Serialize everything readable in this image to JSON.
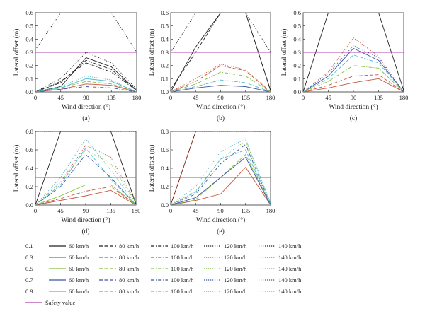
{
  "colors": {
    "0.1": "#222222",
    "0.3": "#c8553d",
    "0.5": "#7fbf3f",
    "0.7": "#3c55a5",
    "0.9": "#4fb8c8",
    "safety": "#b040b0"
  },
  "chart_data": [
    {
      "type": "line",
      "panel": "(a)",
      "xlabel": "Wind direction (°)",
      "ylabel": "Lateral offset (m)",
      "x": [
        0,
        45,
        90,
        135,
        180
      ],
      "xticks": [
        "0",
        "45",
        "90",
        "135",
        "180"
      ],
      "ylim": [
        0,
        0.6
      ],
      "yticks": [
        "0.0",
        "0.1",
        "0.2",
        "0.3",
        "0.4",
        "0.5",
        "0.6"
      ],
      "safety_value": 0.3,
      "series": [
        {
          "group": "0.1",
          "speed": "60 km/h",
          "dash": "solid",
          "values": [
            0,
            0.04,
            0.26,
            0.19,
            0.01
          ]
        },
        {
          "group": "0.1",
          "speed": "80 km/h",
          "dash": "dash",
          "values": [
            0,
            0.07,
            0.24,
            0.17,
            0.01
          ]
        },
        {
          "group": "0.1",
          "speed": "100 km/h",
          "dash": "dashdot",
          "values": [
            0,
            0.08,
            0.22,
            0.15,
            0.01
          ]
        },
        {
          "group": "0.1",
          "speed": "120 km/h",
          "dash": "dotted",
          "values": [
            0,
            0.1,
            0.3,
            0.22,
            0.02
          ]
        },
        {
          "group": "0.1",
          "speed": "140 km/h",
          "dash": "dotted",
          "values": [
            0.32,
            0.6,
            0.6,
            0.6,
            0.3
          ]
        },
        {
          "group": "0.3",
          "speed": "60 km/h",
          "dash": "solid",
          "values": [
            0,
            0.02,
            0.06,
            0.05,
            0
          ]
        },
        {
          "group": "0.5",
          "speed": "80 km/h",
          "dash": "dash",
          "values": [
            0,
            0.03,
            0.08,
            0.06,
            0
          ]
        },
        {
          "group": "0.7",
          "speed": "100 km/h",
          "dash": "dashdot",
          "values": [
            0,
            0.02,
            0.04,
            0.03,
            0
          ]
        },
        {
          "group": "0.9",
          "speed": "60 km/h",
          "dash": "solid",
          "values": [
            0,
            0.03,
            0.1,
            0.08,
            0
          ]
        },
        {
          "group": "0.9",
          "speed": "120 km/h",
          "dash": "dotted",
          "values": [
            0,
            0.04,
            0.12,
            0.09,
            0
          ]
        }
      ]
    },
    {
      "type": "line",
      "panel": "(b)",
      "xlabel": "Wind direction (°)",
      "ylabel": "Lateral offset (m)",
      "x": [
        0,
        45,
        90,
        135,
        180
      ],
      "xticks": [
        "0",
        "45",
        "90",
        "135",
        "180"
      ],
      "ylim": [
        0,
        0.6
      ],
      "yticks": [
        "0.0",
        "0.1",
        "0.2",
        "0.3",
        "0.4",
        "0.5",
        "0.6"
      ],
      "safety_value": 0.3,
      "series": [
        {
          "group": "0.1",
          "speed": "60 km/h",
          "dash": "solid",
          "values": [
            0,
            0.34,
            0.6,
            0.6,
            0.01
          ]
        },
        {
          "group": "0.1",
          "speed": "80 km/h",
          "dash": "dash",
          "values": [
            0.02,
            0.3,
            0.6,
            0.6,
            0.01
          ]
        },
        {
          "group": "0.1",
          "speed": "140 km/h",
          "dash": "dotted",
          "values": [
            0.3,
            0.6,
            0.6,
            0.6,
            0.3
          ]
        },
        {
          "group": "0.3",
          "speed": "80 km/h",
          "dash": "dash",
          "values": [
            0,
            0.08,
            0.2,
            0.16,
            0
          ]
        },
        {
          "group": "0.3",
          "speed": "120 km/h",
          "dash": "dotted",
          "values": [
            0,
            0.1,
            0.21,
            0.17,
            0
          ]
        },
        {
          "group": "0.5",
          "speed": "100 km/h",
          "dash": "dashdot",
          "values": [
            0,
            0.06,
            0.15,
            0.12,
            0
          ]
        },
        {
          "group": "0.7",
          "speed": "60 km/h",
          "dash": "solid",
          "values": [
            0,
            0.03,
            0.05,
            0.04,
            0
          ]
        },
        {
          "group": "0.9",
          "speed": "100 km/h",
          "dash": "dashdot",
          "values": [
            0,
            0.04,
            0.09,
            0.07,
            0
          ]
        }
      ]
    },
    {
      "type": "line",
      "panel": "(c)",
      "xlabel": "Wind direction (°)",
      "ylabel": "Lateral offset (m)",
      "x": [
        0,
        45,
        90,
        135,
        180
      ],
      "xticks": [
        "0",
        "45",
        "90",
        "135",
        "180"
      ],
      "ylim": [
        0,
        0.6
      ],
      "yticks": [
        "0.0",
        "0.1",
        "0.2",
        "0.3",
        "0.4",
        "0.5",
        "0.6"
      ],
      "safety_value": 0.3,
      "series": [
        {
          "group": "0.1",
          "speed": "60 km/h",
          "dash": "solid",
          "values": [
            0,
            0.6,
            0.6,
            0.6,
            0.01
          ]
        },
        {
          "group": "0.3",
          "speed": "60 km/h",
          "dash": "solid",
          "values": [
            0,
            0.03,
            0.07,
            0.1,
            0
          ]
        },
        {
          "group": "0.3",
          "speed": "80 km/h",
          "dash": "dash",
          "values": [
            0,
            0.05,
            0.12,
            0.13,
            0
          ]
        },
        {
          "group": "0.3",
          "speed": "140 km/h",
          "dash": "dotted",
          "values": [
            0,
            0.15,
            0.41,
            0.27,
            0
          ]
        },
        {
          "group": "0.5",
          "speed": "100 km/h",
          "dash": "dashdot",
          "values": [
            0,
            0.08,
            0.2,
            0.18,
            0
          ]
        },
        {
          "group": "0.7",
          "speed": "60 km/h",
          "dash": "solid",
          "values": [
            0,
            0.12,
            0.33,
            0.24,
            0
          ]
        },
        {
          "group": "0.7",
          "speed": "120 km/h",
          "dash": "dotted",
          "values": [
            0,
            0.14,
            0.35,
            0.26,
            0
          ]
        },
        {
          "group": "0.9",
          "speed": "80 km/h",
          "dash": "dash",
          "values": [
            0,
            0.1,
            0.28,
            0.22,
            0
          ]
        }
      ]
    },
    {
      "type": "line",
      "panel": "(d)",
      "xlabel": "Wind direction (°)",
      "ylabel": "Lateral offset (m)",
      "x": [
        0,
        45,
        90,
        135,
        180
      ],
      "xticks": [
        "0",
        "45",
        "90",
        "135",
        "180"
      ],
      "ylim": [
        0,
        0.8
      ],
      "yticks": [
        "0.0",
        "0.2",
        "0.4",
        "0.6",
        "0.8"
      ],
      "safety_value": 0.3,
      "series": [
        {
          "group": "0.1",
          "speed": "60 km/h",
          "dash": "solid",
          "values": [
            0,
            0.8,
            0.8,
            0.8,
            0.01
          ]
        },
        {
          "group": "0.1",
          "speed": "140 km/h",
          "dash": "dotted",
          "values": [
            0.8,
            0.8,
            0.8,
            0.8,
            0.8
          ]
        },
        {
          "group": "0.3",
          "speed": "60 km/h",
          "dash": "solid",
          "values": [
            0,
            0.05,
            0.1,
            0.16,
            0
          ]
        },
        {
          "group": "0.3",
          "speed": "80 km/h",
          "dash": "dash",
          "values": [
            0,
            0.07,
            0.15,
            0.2,
            0
          ]
        },
        {
          "group": "0.3",
          "speed": "140 km/h",
          "dash": "dotted",
          "values": [
            0,
            0.25,
            0.65,
            0.52,
            0.02
          ]
        },
        {
          "group": "0.5",
          "speed": "60 km/h",
          "dash": "solid",
          "values": [
            0,
            0.1,
            0.22,
            0.22,
            0
          ]
        },
        {
          "group": "0.5",
          "speed": "120 km/h",
          "dash": "dotted",
          "values": [
            0,
            0.25,
            0.6,
            0.45,
            0.02
          ]
        },
        {
          "group": "0.7",
          "speed": "100 km/h",
          "dash": "dashdot",
          "values": [
            0,
            0.2,
            0.55,
            0.3,
            0
          ]
        },
        {
          "group": "0.9",
          "speed": "80 km/h",
          "dash": "dash",
          "values": [
            0,
            0.22,
            0.62,
            0.28,
            0
          ]
        },
        {
          "group": "0.9",
          "speed": "140 km/h",
          "dash": "dotted",
          "values": [
            0,
            0.3,
            0.72,
            0.38,
            0
          ]
        }
      ]
    },
    {
      "type": "line",
      "panel": "(e)",
      "xlabel": "Wind direction (°)",
      "ylabel": "Lateral offset (m)",
      "x": [
        0,
        45,
        90,
        135,
        180
      ],
      "xticks": [
        "0",
        "45",
        "90",
        "135",
        "180"
      ],
      "ylim": [
        0,
        0.8
      ],
      "yticks": [
        "0.0",
        "0.2",
        "0.4",
        "0.6",
        "0.8"
      ],
      "safety_value": 0.3,
      "series": [
        {
          "group": "0.1",
          "speed": "60 km/h",
          "dash": "solid",
          "values": [
            0,
            0.8,
            0.8,
            0.8,
            0.8
          ]
        },
        {
          "group": "0.3",
          "speed": "60 km/h",
          "dash": "solid",
          "values": [
            0,
            0.05,
            0.12,
            0.41,
            0
          ]
        },
        {
          "group": "0.3",
          "speed": "140 km/h",
          "dash": "dotted",
          "values": [
            0,
            0.8,
            0.8,
            0.8,
            0.8
          ]
        },
        {
          "group": "0.5",
          "speed": "80 km/h",
          "dash": "dash",
          "values": [
            0,
            0.06,
            0.3,
            0.55,
            0
          ]
        },
        {
          "group": "0.5",
          "speed": "120 km/h",
          "dash": "dotted",
          "values": [
            0,
            0.15,
            0.5,
            0.7,
            0.02
          ]
        },
        {
          "group": "0.7",
          "speed": "60 km/h",
          "dash": "solid",
          "values": [
            0,
            0.08,
            0.3,
            0.52,
            0
          ]
        },
        {
          "group": "0.7",
          "speed": "100 km/h",
          "dash": "dashdot",
          "values": [
            0,
            0.12,
            0.45,
            0.66,
            0
          ]
        },
        {
          "group": "0.9",
          "speed": "80 km/h",
          "dash": "dash",
          "values": [
            0,
            0.14,
            0.5,
            0.6,
            0
          ]
        },
        {
          "group": "0.9",
          "speed": "140 km/h",
          "dash": "dotted",
          "values": [
            0,
            0.2,
            0.58,
            0.72,
            0.02
          ]
        }
      ]
    }
  ],
  "legend": {
    "rows": [
      {
        "label": "0.1",
        "color": "#222222",
        "items": [
          "60 km/h",
          "80 km/h",
          "100 km/h",
          "120 km/h",
          "140 km/h"
        ]
      },
      {
        "label": "0.3",
        "color": "#c8553d",
        "items": [
          "60 km/h",
          "80 km/h",
          "100 km/h",
          "120 km/h",
          "140 km/h"
        ]
      },
      {
        "label": "0.5",
        "color": "#7fbf3f",
        "items": [
          "60 km/h",
          "80 km/h",
          "100 km/h",
          "120 km/h",
          "140 km/h"
        ]
      },
      {
        "label": "0.7",
        "color": "#3c55a5",
        "items": [
          "60 km/h",
          "80 km/h",
          "100 km/h",
          "120 km/h",
          "140 km/h"
        ]
      },
      {
        "label": "0.9",
        "color": "#4fb8c8",
        "items": [
          "60 km/h",
          "80 km/h",
          "100 km/h",
          "120 km/h",
          "140 km/h"
        ]
      }
    ],
    "dashes": [
      "solid",
      "dash",
      "dashdot",
      "dotted",
      "dotted"
    ],
    "safety_label": "Safety value",
    "safety_color": "#b040b0"
  }
}
